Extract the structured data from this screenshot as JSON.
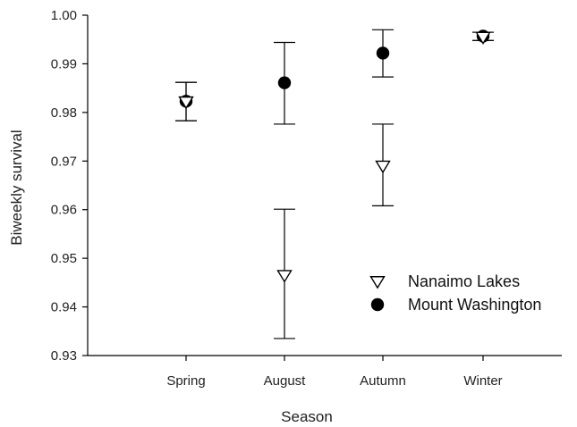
{
  "chart_data": {
    "type": "scatter",
    "title": "",
    "xlabel": "Season",
    "ylabel": "Biweekly survival",
    "categories": [
      "Spring",
      "August",
      "Autumn",
      "Winter"
    ],
    "ylim": [
      0.93,
      1.0
    ],
    "yticks": [
      "0.93",
      "0.94",
      "0.95",
      "0.96",
      "0.97",
      "0.98",
      "0.99",
      "1.00"
    ],
    "grid": false,
    "legend_position": "lower-right",
    "series": [
      {
        "name": "Nanaimo Lakes",
        "marker": "open-triangle-down",
        "color": "#000000",
        "values": [
          0.9822,
          0.9465,
          0.969,
          0.9955
        ],
        "lower": [
          0.9783,
          0.9335,
          0.9608,
          0.9948
        ],
        "upper": [
          0.9862,
          0.9601,
          0.9776,
          0.9965
        ]
      },
      {
        "name": "Mount Washington",
        "marker": "filled-circle",
        "color": "#000000",
        "values": [
          0.9823,
          0.9861,
          0.9922,
          0.9957
        ],
        "lower": [
          0.9783,
          0.9776,
          0.9873,
          0.9948
        ],
        "upper": [
          0.9862,
          0.9944,
          0.997,
          0.9965
        ]
      }
    ]
  }
}
